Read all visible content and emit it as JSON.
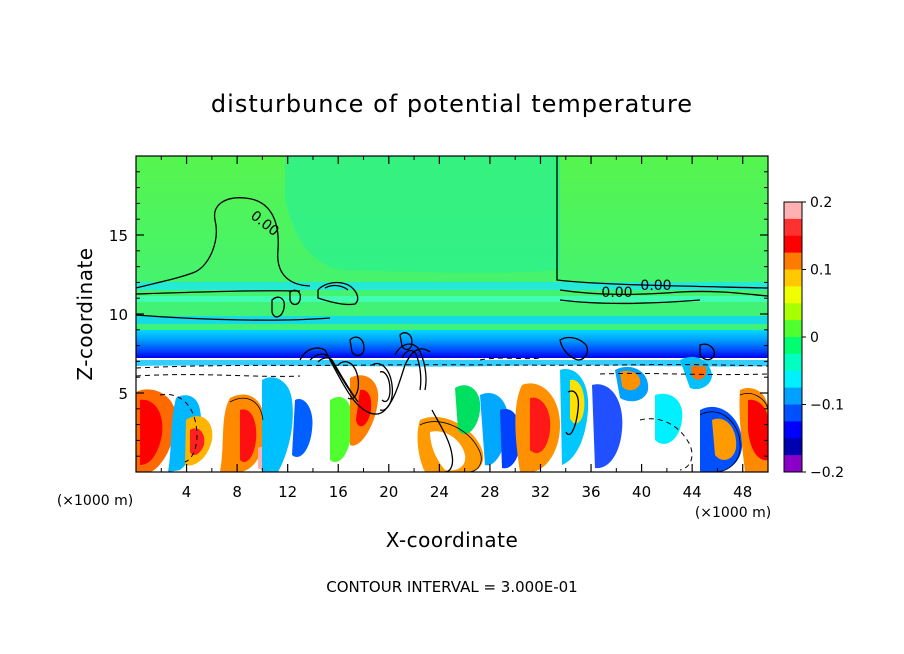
{
  "chart_data": {
    "type": "heatmap",
    "title": "disturbunce of potential temperature",
    "xlabel": "X-coordinate",
    "ylabel": "Z-coordinate",
    "x_unit": "(×1000 m)",
    "y_unit": "(×1000 m)",
    "xlim": [
      0,
      50
    ],
    "ylim": [
      0,
      20
    ],
    "x_ticks": [
      4,
      8,
      12,
      16,
      20,
      24,
      28,
      32,
      36,
      40,
      44,
      48
    ],
    "y_ticks": [
      5,
      10,
      15
    ],
    "colorbar": {
      "min": -0.2,
      "max": 0.2,
      "tick_values": [
        0.2,
        0.1,
        0,
        -0.1,
        -0.2
      ],
      "tick_labels": [
        "0.2",
        "0.1",
        "0",
        "−0.1",
        "−0.2"
      ],
      "colors": [
        "#ffb0b0",
        "#ff3030",
        "#ff0000",
        "#ff7a00",
        "#ffc800",
        "#f0ff00",
        "#a8ff00",
        "#50ff30",
        "#00ff70",
        "#00ffc0",
        "#00f0ff",
        "#00a0ff",
        "#0050ff",
        "#0000ff",
        "#0000b0",
        "#8a00c8"
      ]
    },
    "contour_labels": [
      {
        "text": "0.00",
        "x": 10,
        "z": 16.5
      },
      {
        "text": "0.00",
        "x": 38.5,
        "z": 11.3
      },
      {
        "text": "0.00",
        "x": 41.6,
        "z": 11.5
      }
    ],
    "annotation": "CONTOUR INTERVAL = 3.000E-01"
  }
}
